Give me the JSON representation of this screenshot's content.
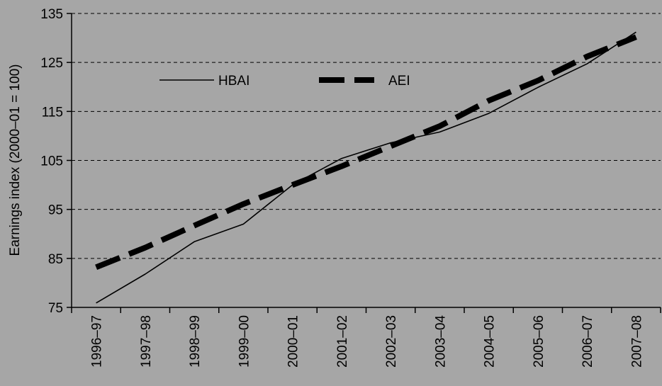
{
  "chart_data": {
    "type": "line",
    "title": "",
    "xlabel": "",
    "ylabel": "Earnings index (2000–01 = 100)",
    "ylim": [
      75,
      135
    ],
    "yticks": [
      75,
      85,
      95,
      105,
      115,
      125,
      135
    ],
    "grid": true,
    "legend_position": "top-left",
    "categories": [
      "1996–97",
      "1997–98",
      "1998–99",
      "1999–00",
      "2000–01",
      "2001–02",
      "2002–03",
      "2003–04",
      "2004–05",
      "2005–06",
      "2006–07",
      "2007–08"
    ],
    "series": [
      {
        "name": "HBAI",
        "style": "solid-thin",
        "values": [
          75.9,
          81.8,
          88.4,
          92.0,
          100.0,
          105.4,
          108.6,
          110.8,
          114.6,
          119.9,
          124.7,
          131.2
        ]
      },
      {
        "name": "AEI",
        "style": "dashed-thick",
        "values": [
          83.2,
          87.2,
          91.7,
          96.1,
          100.0,
          103.8,
          107.9,
          112.0,
          117.2,
          121.3,
          126.2,
          130.2
        ]
      }
    ]
  },
  "colors": {
    "background": "#a6a6a6",
    "series_line": "#000000",
    "gridline": "#000000"
  }
}
